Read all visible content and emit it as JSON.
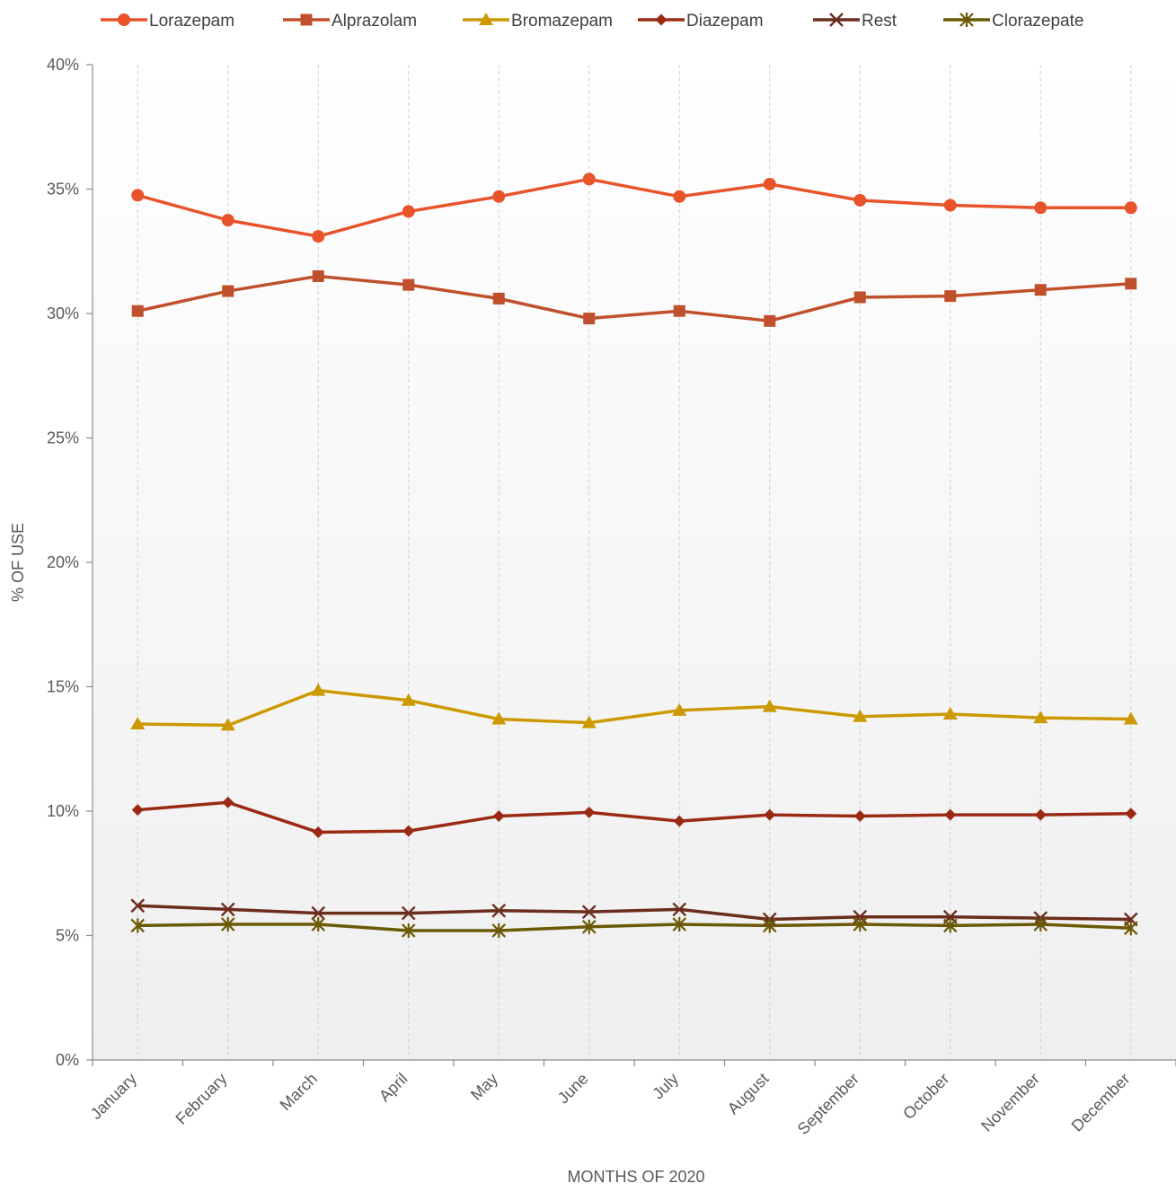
{
  "chart_data": {
    "type": "line",
    "title": "",
    "xlabel": "MONTHS OF 2020",
    "ylabel": "% OF USE",
    "ylim": [
      0,
      40
    ],
    "yticks": [
      0,
      5,
      10,
      15,
      20,
      25,
      30,
      35,
      40
    ],
    "ytick_labels": [
      "0%",
      "5%",
      "10%",
      "15%",
      "20%",
      "25%",
      "30%",
      "35%",
      "40%"
    ],
    "categories": [
      "January",
      "February",
      "March",
      "April",
      "May",
      "June",
      "July",
      "August",
      "September",
      "October",
      "November",
      "December"
    ],
    "legend_position": "top",
    "grid": "vertical dashed drop lines at each category",
    "series": [
      {
        "name": "Lorazepam",
        "color": "#e8532a",
        "marker": "circle",
        "values": [
          34.75,
          33.75,
          33.1,
          34.1,
          34.7,
          35.4,
          34.7,
          35.2,
          34.55,
          34.35,
          34.25,
          34.25
        ]
      },
      {
        "name": "Alprazolam",
        "color": "#c0502b",
        "marker": "square",
        "values": [
          30.1,
          30.9,
          31.5,
          31.15,
          30.6,
          29.8,
          30.1,
          29.7,
          30.65,
          30.7,
          30.95,
          31.2
        ]
      },
      {
        "name": "Bromazepam",
        "color": "#cc9900",
        "marker": "triangle",
        "values": [
          13.5,
          13.45,
          14.85,
          14.45,
          13.7,
          13.55,
          14.05,
          14.2,
          13.8,
          13.9,
          13.75,
          13.7
        ]
      },
      {
        "name": "Diazepam",
        "color": "#9b2a14",
        "marker": "diamond",
        "values": [
          10.05,
          10.35,
          9.15,
          9.2,
          9.8,
          9.95,
          9.6,
          9.85,
          9.8,
          9.85,
          9.85,
          9.9
        ]
      },
      {
        "name": "Rest",
        "color": "#6b2d1e",
        "marker": "x",
        "values": [
          6.2,
          6.05,
          5.9,
          5.9,
          6.0,
          5.95,
          6.05,
          5.65,
          5.75,
          5.75,
          5.7,
          5.65
        ]
      },
      {
        "name": "Clorazepate",
        "color": "#6b5a05",
        "marker": "star",
        "values": [
          5.4,
          5.45,
          5.45,
          5.2,
          5.2,
          5.35,
          5.45,
          5.4,
          5.45,
          5.4,
          5.45,
          5.3
        ]
      }
    ]
  }
}
